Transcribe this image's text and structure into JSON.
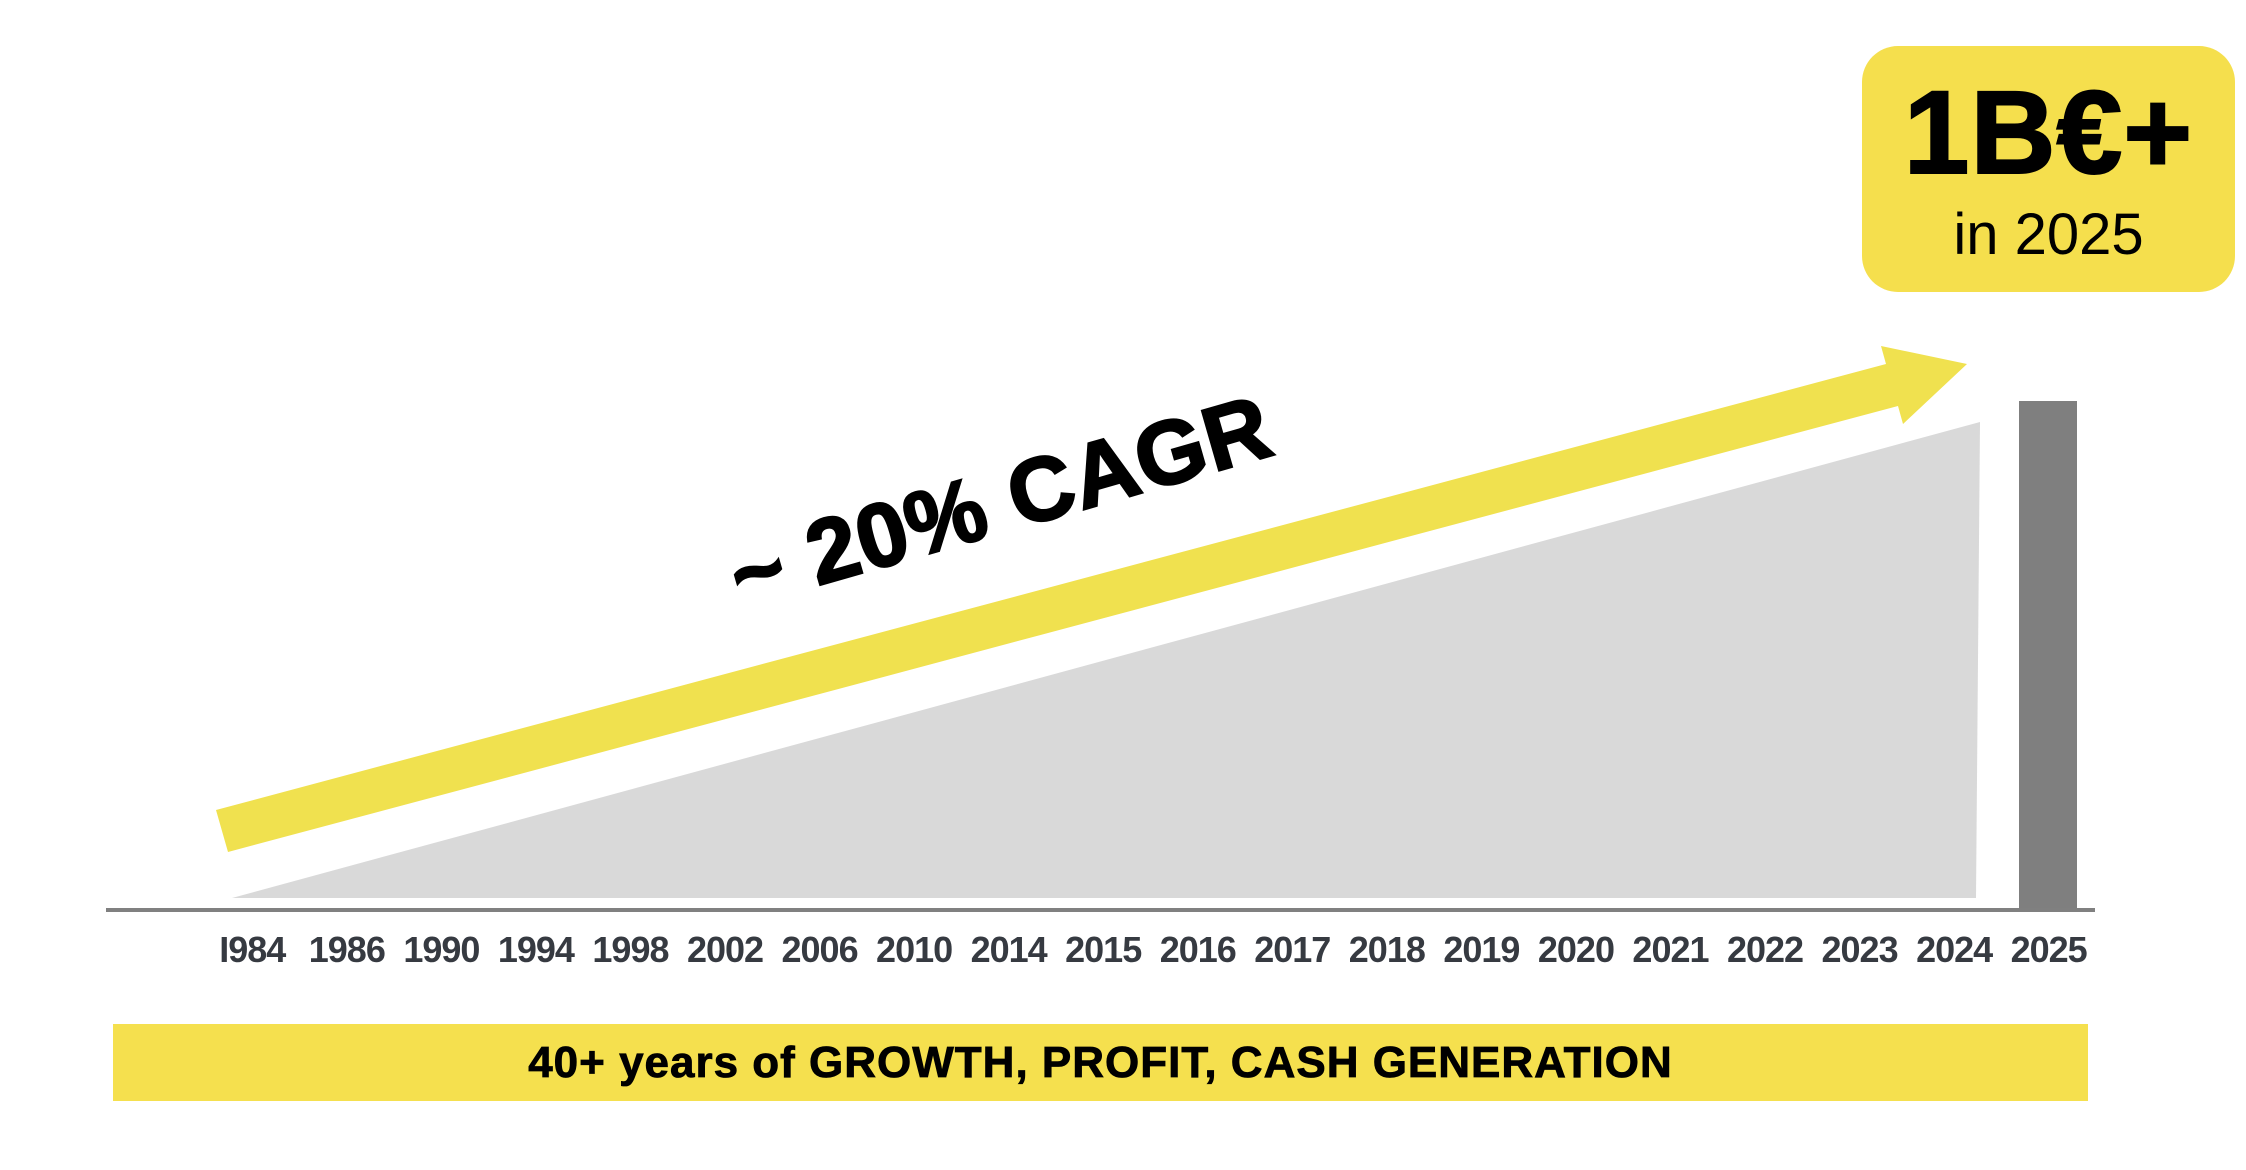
{
  "slide": {
    "background": "#FFFFFF",
    "badge": {
      "value": "1B€+",
      "subtitle": "in 2025",
      "bg_color": "#F5DF4D",
      "text_color": "#000000"
    },
    "cagr_annotation": "~ 20% CAGR",
    "footer_banner": {
      "text": "40+ years of GROWTH, PROFIT, CASH GENERATION",
      "bg_color": "#F5E04E",
      "text_color": "#000000"
    }
  },
  "colors": {
    "arrow_yellow": "#F0E14F",
    "wedge_gray": "#D9D9D9",
    "bar_gray": "#7F7F7F",
    "axis_gray": "#808080",
    "tick_label": "#363A41",
    "annotation_black": "#000000"
  },
  "chart_data": {
    "type": "area",
    "title": "",
    "subtitle": "40+ years of GROWTH, PROFIT, CASH GENERATION",
    "categories": [
      "I984",
      "1986",
      "1990",
      "1994",
      "1998",
      "2002",
      "2006",
      "2010",
      "2014",
      "2015",
      "2016",
      "2017",
      "2018",
      "2019",
      "2020",
      "2021",
      "2022",
      "2023",
      "2024",
      "2025"
    ],
    "series": [
      {
        "name": "growth-wedge-1984-2024",
        "type": "area",
        "color": "#D9D9D9",
        "note": "stylized triangular wedge rising linearly, no y-axis shown; heights normalized to wedge apex at 2024",
        "values_normalized": [
          0,
          0.06,
          0.11,
          0.17,
          0.22,
          0.28,
          0.33,
          0.39,
          0.44,
          0.5,
          0.56,
          0.61,
          0.67,
          0.72,
          0.78,
          0.83,
          0.89,
          0.94,
          1.0,
          null
        ]
      },
      {
        "name": "revenue-2025-bar",
        "type": "bar",
        "color": "#7F7F7F",
        "value_label": "1B€+",
        "values_normalized": [
          null,
          null,
          null,
          null,
          null,
          null,
          null,
          null,
          null,
          null,
          null,
          null,
          null,
          null,
          null,
          null,
          null,
          null,
          null,
          1.06
        ]
      }
    ],
    "annotations": [
      {
        "text": "~ 20% CAGR",
        "style": "large rotated bold black label above yellow trend arrow"
      },
      {
        "text": "1B€+ in 2025",
        "style": "yellow rounded callout badge, top right"
      }
    ],
    "trend_arrow": {
      "color": "#F0E14F",
      "from_category": "I984",
      "to_category": "2025",
      "direction": "up-right"
    },
    "x_axis": {
      "line_color": "#808080",
      "tick_label_color": "#363A41",
      "labels_visible": true
    },
    "y_axis": {
      "visible": false
    },
    "grid": false,
    "legend": false
  }
}
